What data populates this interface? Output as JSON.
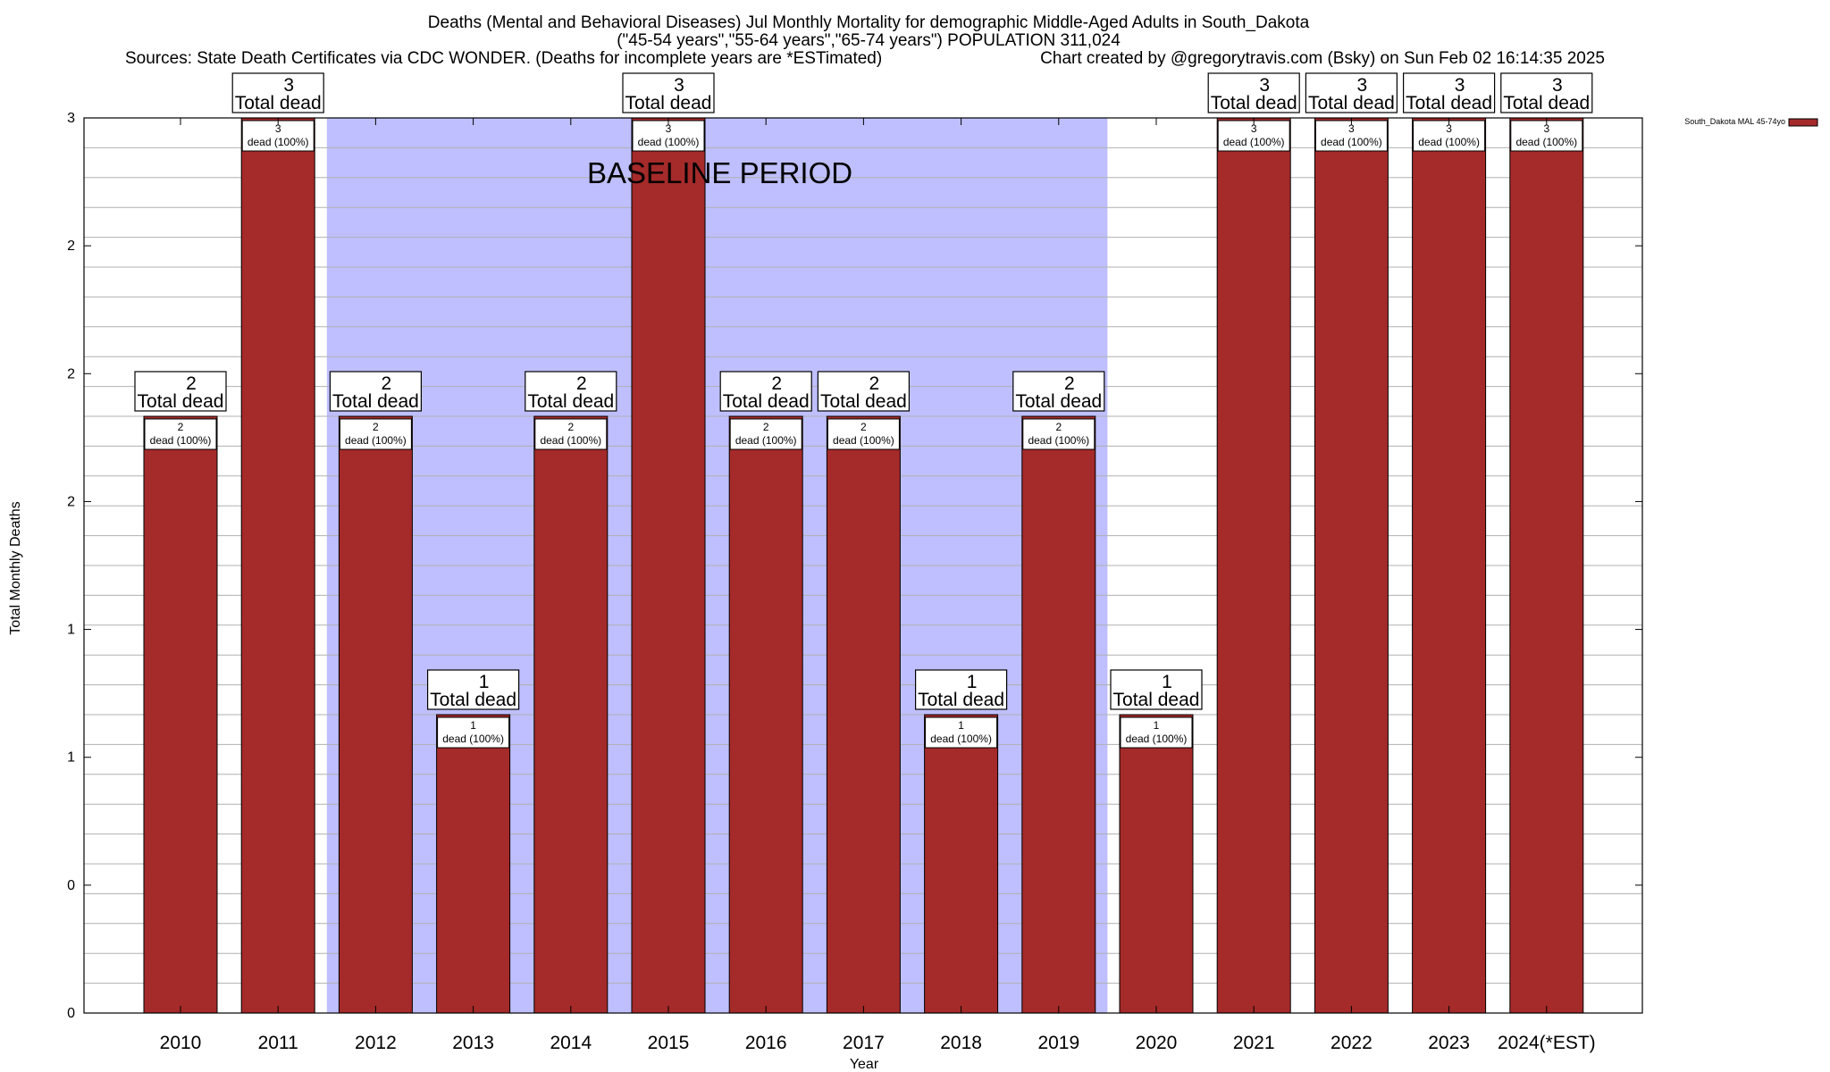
{
  "chart_data": {
    "type": "bar",
    "title_lines": [
      "Deaths (Mental and Behavioral Diseases) Jul Monthly Mortality for demographic Middle-Aged Adults in South_Dakota",
      "(\"45-54 years\",\"55-64 years\",\"65-74 years\") POPULATION 311,024"
    ],
    "sources": "Sources: State Death Certificates via CDC WONDER. (Deaths for incomplete years are *ESTimated)",
    "credit": "Chart created by @gregorytravis.com (Bsky) on Sun Feb 02 16:14:35 2025",
    "xlabel": "Year",
    "ylabel": "Total Monthly Deaths",
    "ylim": [
      0,
      3
    ],
    "ytick_labels": [
      "0",
      "0",
      "1",
      "1",
      "2",
      "2",
      "2",
      "3"
    ],
    "categories": [
      "2010",
      "2011",
      "2012",
      "2013",
      "2014",
      "2015",
      "2016",
      "2017",
      "2018",
      "2019",
      "2020",
      "2021",
      "2022",
      "2023",
      "2024(*EST)"
    ],
    "series": [
      {
        "name": "South_Dakota MAL 45-74yo",
        "values": [
          2,
          3,
          2,
          1,
          2,
          3,
          2,
          2,
          1,
          2,
          1,
          3,
          3,
          3,
          3
        ]
      }
    ],
    "total_labels": [
      "2",
      "3",
      "2",
      "1",
      "2",
      "3",
      "2",
      "2",
      "1",
      "2",
      "1",
      "3",
      "3",
      "3",
      "3"
    ],
    "total_suffix": "Total dead",
    "inner_labels": [
      "2",
      "3",
      "2",
      "1",
      "2",
      "3",
      "2",
      "2",
      "1",
      "2",
      "1",
      "3",
      "3",
      "3",
      "3"
    ],
    "inner_suffix": "dead (100%)",
    "baseline": {
      "label": "BASELINE PERIOD",
      "from_category": "2012",
      "to_category": "2019"
    },
    "legend_position": "top-right",
    "grid": true,
    "colors": {
      "bar": "#a52a2a",
      "baseline": "#bfbfff",
      "grid": "#b0b0b0"
    }
  }
}
